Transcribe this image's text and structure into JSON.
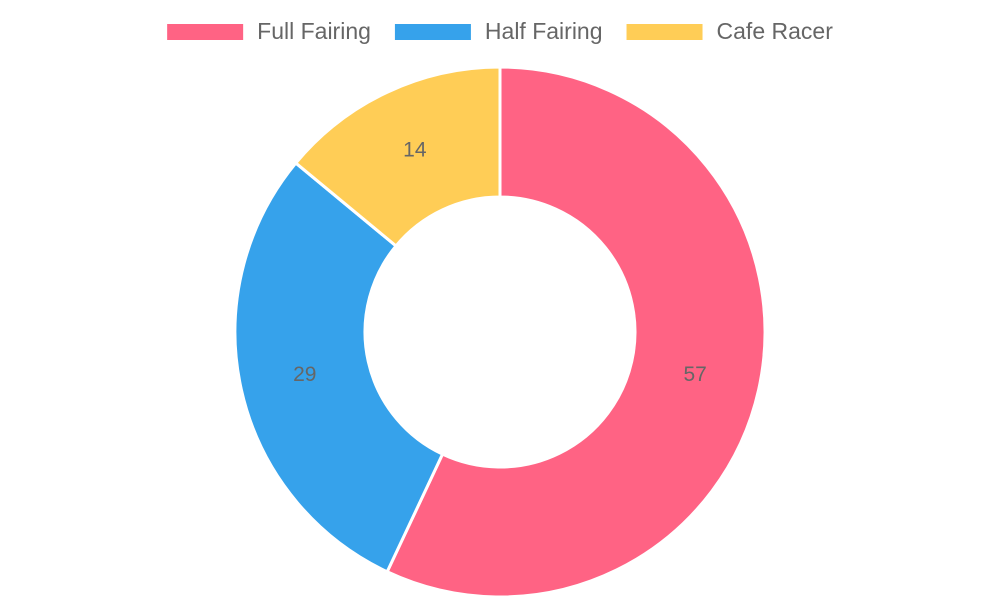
{
  "chart_data": {
    "type": "doughnut",
    "categories": [
      "Full Fairing",
      "Half Fairing",
      "Cafe Racer"
    ],
    "values": [
      57,
      29,
      14
    ],
    "colors": [
      "#ff6384",
      "#36a2eb",
      "#ffcd56"
    ],
    "legend": "top"
  }
}
